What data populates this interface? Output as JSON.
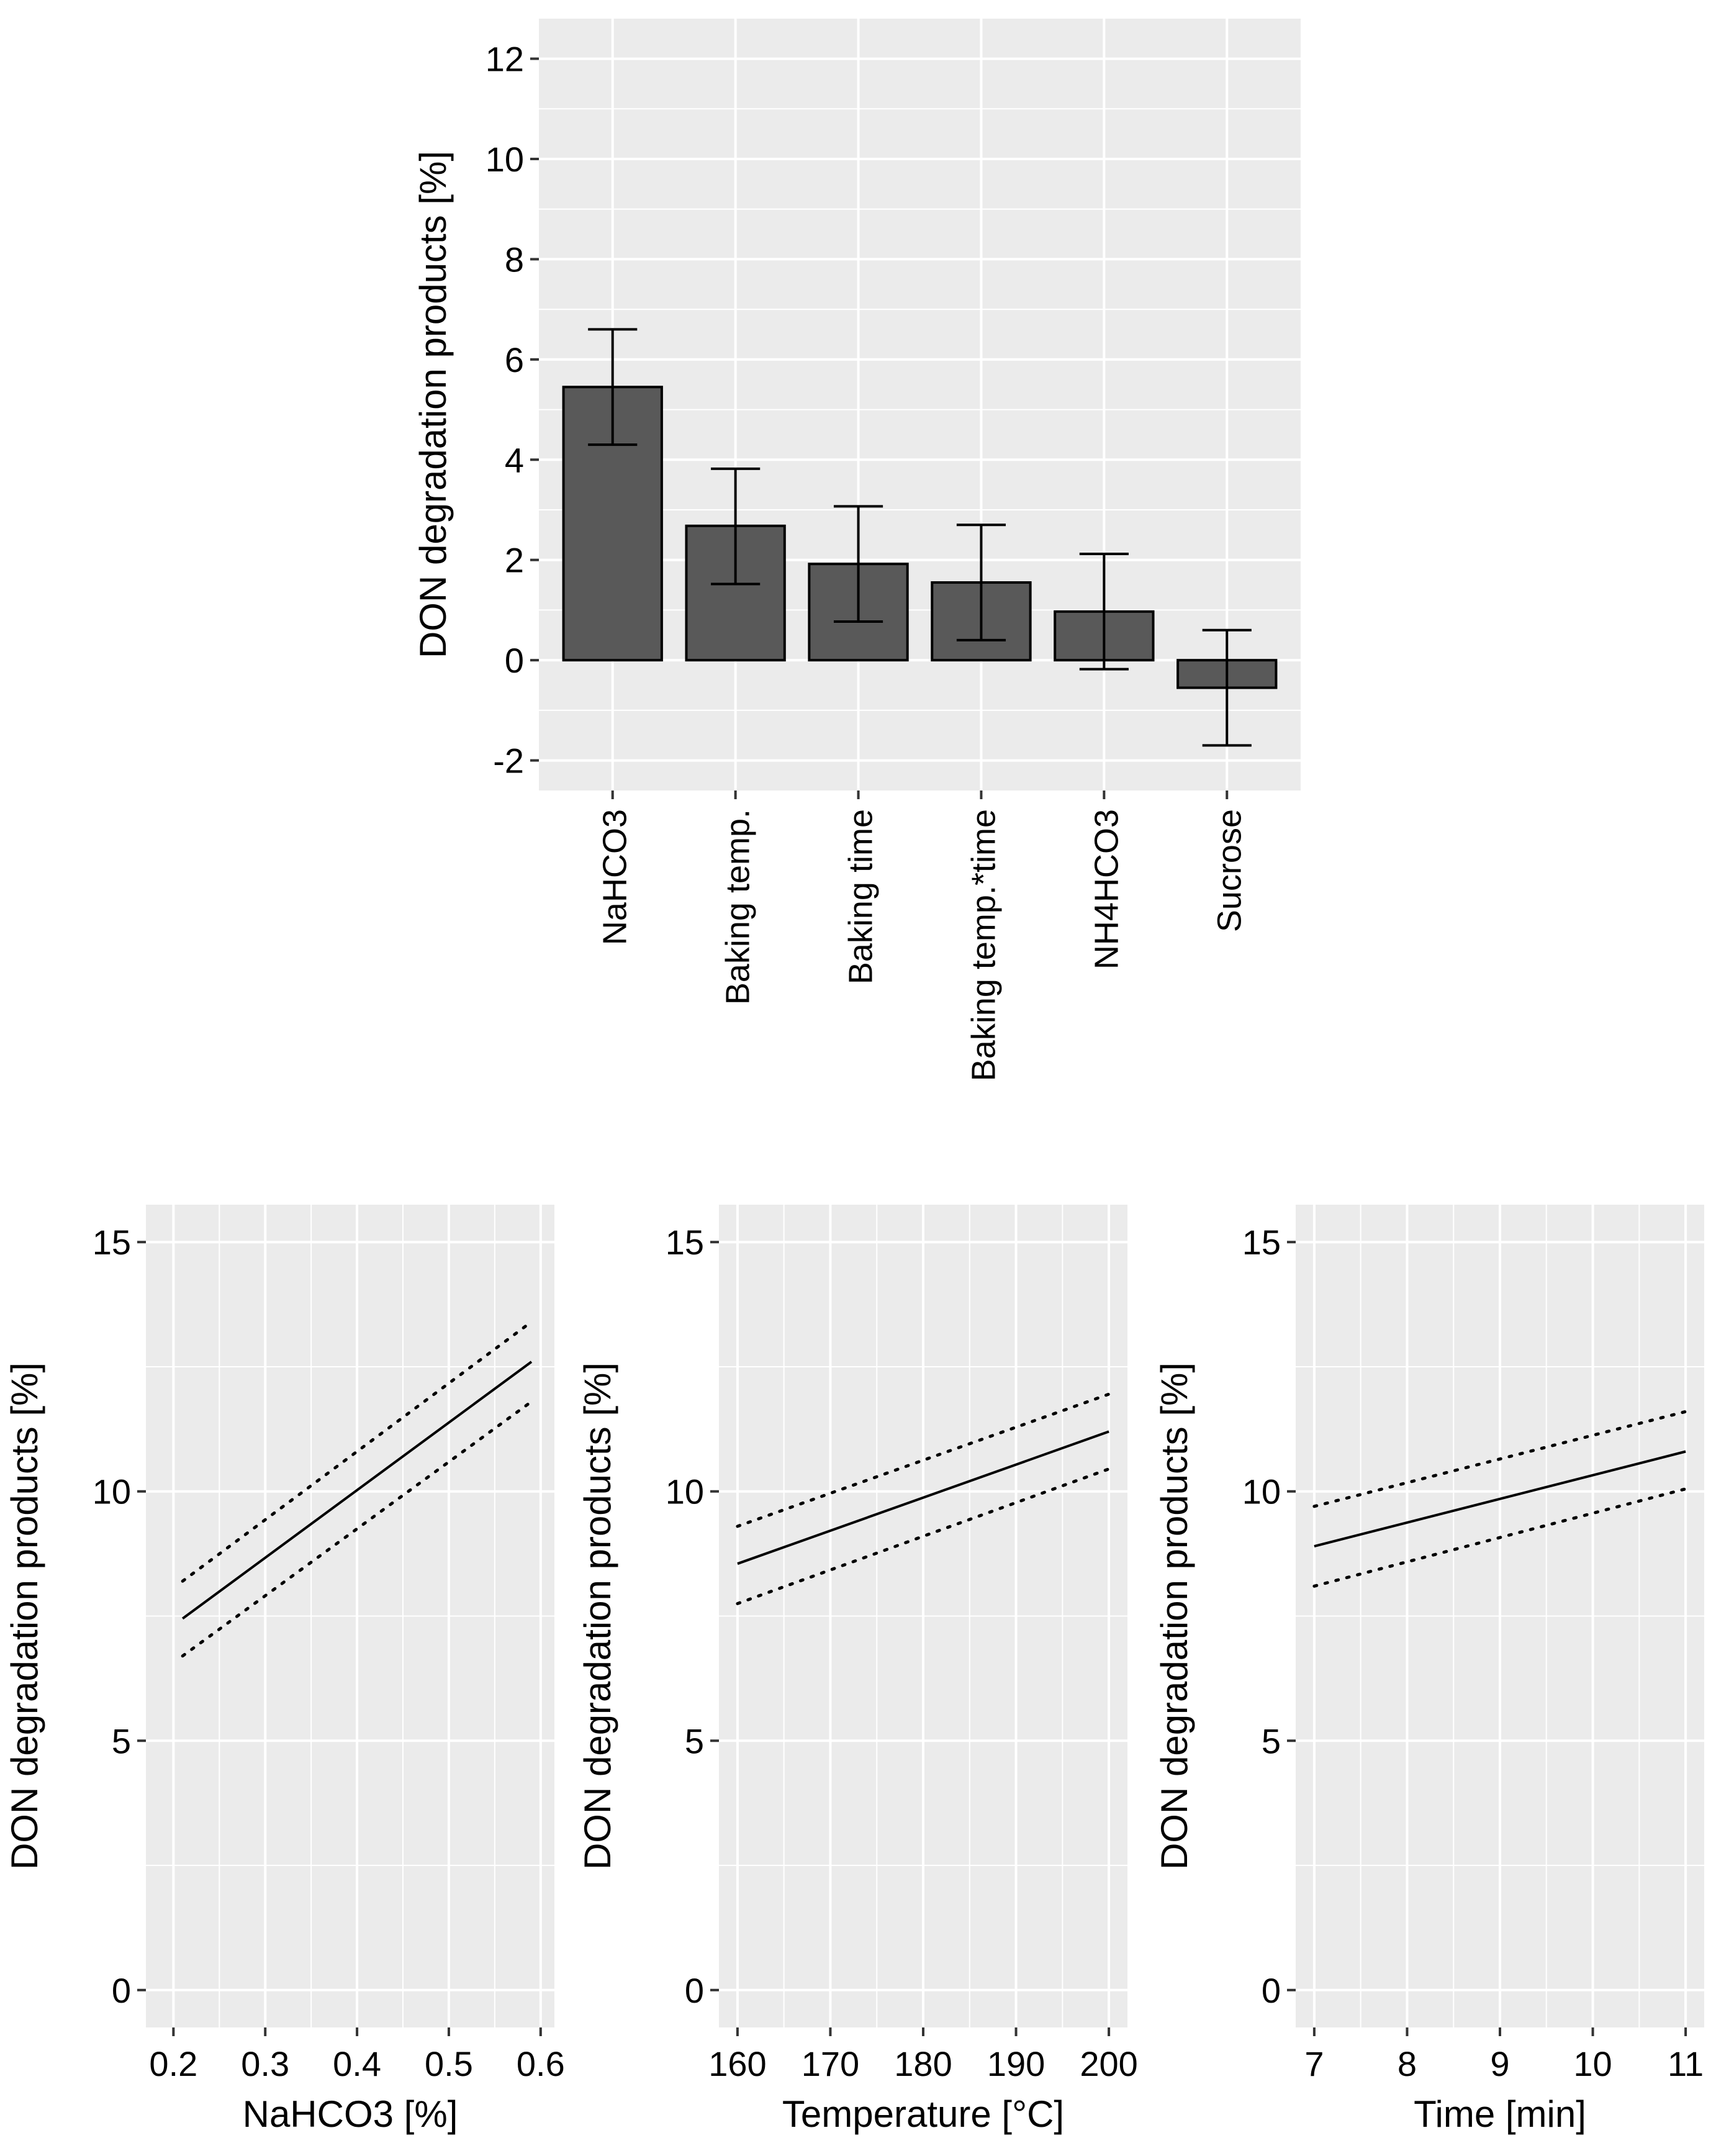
{
  "colors": {
    "panel_bg": "#ebebeb",
    "grid_major": "#ffffff",
    "bar_fill": "#595959",
    "line": "#000000",
    "text": "#000000"
  },
  "chart_data": [
    {
      "id": "effects",
      "type": "bar",
      "ylabel": "DON degradation products [%]",
      "xlabel": "",
      "ylim": [
        -2.6,
        12.8
      ],
      "yticks": [
        -2,
        0,
        2,
        4,
        6,
        8,
        10,
        12
      ],
      "ytick_labels": [
        "-2",
        "0",
        "2",
        "4",
        "6",
        "8",
        "10",
        "12"
      ],
      "categories": [
        "NaHCO3",
        "Baking temp.",
        "Baking time",
        "Baking temp.*time",
        "NH4HCO3",
        "Sucrose"
      ],
      "values": [
        5.45,
        2.68,
        1.92,
        1.55,
        0.97,
        -0.55
      ],
      "error_low": [
        4.3,
        1.52,
        0.77,
        0.4,
        -0.18,
        -1.7
      ],
      "error_high": [
        6.6,
        3.82,
        3.07,
        2.7,
        2.12,
        0.6
      ]
    },
    {
      "id": "nahco3",
      "type": "line",
      "xlabel": "NaHCO3 [%]",
      "ylabel": "DON degradation products [%]",
      "xlim": [
        0.17,
        0.615
      ],
      "ylim": [
        -0.75,
        15.75
      ],
      "xticks": [
        0.2,
        0.3,
        0.4,
        0.5,
        0.6
      ],
      "xtick_labels": [
        "0.2",
        "0.3",
        "0.4",
        "0.5",
        "0.6"
      ],
      "yticks": [
        0,
        5,
        10,
        15
      ],
      "ytick_labels": [
        "0",
        "5",
        "10",
        "15"
      ],
      "series": [
        {
          "name": "fit",
          "style": "solid",
          "x": [
            0.21,
            0.59
          ],
          "y": [
            7.45,
            12.6
          ]
        },
        {
          "name": "upper",
          "style": "dotted",
          "x": [
            0.21,
            0.59
          ],
          "y": [
            8.2,
            13.4
          ]
        },
        {
          "name": "lower",
          "style": "dotted",
          "x": [
            0.21,
            0.59
          ],
          "y": [
            6.7,
            11.8
          ]
        }
      ]
    },
    {
      "id": "temperature",
      "type": "line",
      "xlabel": "Temperature [°C]",
      "ylabel": "DON degradation products [%]",
      "xlim": [
        158,
        202
      ],
      "ylim": [
        -0.75,
        15.75
      ],
      "xticks": [
        160,
        170,
        180,
        190,
        200
      ],
      "xtick_labels": [
        "160",
        "170",
        "180",
        "190",
        "200"
      ],
      "yticks": [
        0,
        5,
        10,
        15
      ],
      "ytick_labels": [
        "0",
        "5",
        "10",
        "15"
      ],
      "series": [
        {
          "name": "fit",
          "style": "solid",
          "x": [
            160,
            200
          ],
          "y": [
            8.55,
            11.2
          ]
        },
        {
          "name": "upper",
          "style": "dotted",
          "x": [
            160,
            200
          ],
          "y": [
            9.3,
            11.95
          ]
        },
        {
          "name": "lower",
          "style": "dotted",
          "x": [
            160,
            200
          ],
          "y": [
            7.75,
            10.45
          ]
        }
      ]
    },
    {
      "id": "time",
      "type": "line",
      "xlabel": "Time [min]",
      "ylabel": "DON degradation products [%]",
      "xlim": [
        6.8,
        11.2
      ],
      "ylim": [
        -0.75,
        15.75
      ],
      "xticks": [
        7,
        8,
        9,
        10,
        11
      ],
      "xtick_labels": [
        "7",
        "8",
        "9",
        "10",
        "11"
      ],
      "yticks": [
        0,
        5,
        10,
        15
      ],
      "ytick_labels": [
        "0",
        "5",
        "10",
        "15"
      ],
      "series": [
        {
          "name": "fit",
          "style": "solid",
          "x": [
            7,
            11
          ],
          "y": [
            8.9,
            10.8
          ]
        },
        {
          "name": "upper",
          "style": "dotted",
          "x": [
            7,
            11
          ],
          "y": [
            9.7,
            11.6
          ]
        },
        {
          "name": "lower",
          "style": "dotted",
          "x": [
            7,
            11
          ],
          "y": [
            8.1,
            10.05
          ]
        }
      ]
    }
  ]
}
